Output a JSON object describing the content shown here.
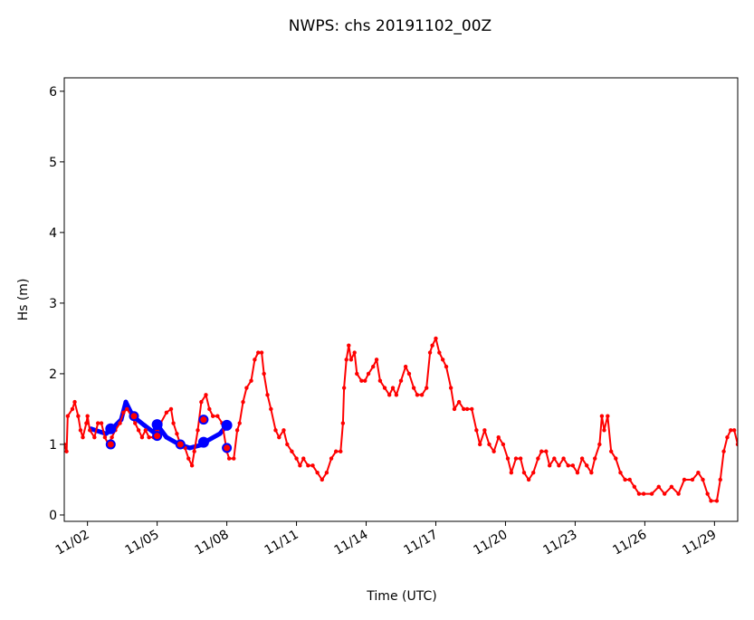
{
  "chart_data": {
    "type": "line",
    "title": "NWPS: chs 20191102_00Z",
    "xlabel": "Time (UTC)",
    "ylabel": "Hs (m)",
    "x_units": "days since 11/01 00Z",
    "xlim": [
      0,
      29
    ],
    "ylim": [
      -0.09,
      6.19
    ],
    "yticks": [
      0,
      1,
      2,
      3,
      4,
      5,
      6
    ],
    "xticks": [
      {
        "day": 1,
        "label": "11/02"
      },
      {
        "day": 4,
        "label": "11/05"
      },
      {
        "day": 7,
        "label": "11/08"
      },
      {
        "day": 10,
        "label": "11/11"
      },
      {
        "day": 13,
        "label": "11/14"
      },
      {
        "day": 16,
        "label": "11/17"
      },
      {
        "day": 19,
        "label": "11/20"
      },
      {
        "day": 22,
        "label": "11/23"
      },
      {
        "day": 25,
        "label": "11/26"
      },
      {
        "day": 28,
        "label": "11/29"
      }
    ],
    "grid": false,
    "series": [
      {
        "name": "blue-line",
        "color": "#0000ff",
        "x": [
          1.15,
          1.8,
          2.0,
          2.45,
          2.65,
          2.95,
          3.45,
          3.85,
          4.0,
          4.4,
          4.95,
          5.4,
          6.0,
          6.15,
          6.7,
          7.0
        ],
        "y": [
          1.22,
          1.15,
          1.2,
          1.35,
          1.6,
          1.4,
          1.27,
          1.17,
          1.28,
          1.1,
          1.0,
          0.95,
          1.0,
          1.05,
          1.15,
          1.27
        ]
      },
      {
        "name": "red-line",
        "color": "#ff0000",
        "x": [
          0,
          0.1,
          0.15,
          0.35,
          0.45,
          0.6,
          0.7,
          0.8,
          0.95,
          1.0,
          1.1,
          1.3,
          1.45,
          1.6,
          1.75,
          1.9,
          2.05,
          2.2,
          2.4,
          2.55,
          2.7,
          2.9,
          3.05,
          3.2,
          3.35,
          3.5,
          3.65,
          3.85,
          4.0,
          4.15,
          4.4,
          4.6,
          4.7,
          4.85,
          5.0,
          5.2,
          5.35,
          5.5,
          5.6,
          5.75,
          5.9,
          6.1,
          6.25,
          6.4,
          6.6,
          6.8,
          7.0,
          7.1,
          7.3,
          7.45,
          7.55,
          7.7,
          7.85,
          8.05,
          8.2,
          8.35,
          8.5,
          8.6,
          8.75,
          8.9,
          9.1,
          9.25,
          9.45,
          9.6,
          9.8,
          10.0,
          10.15,
          10.3,
          10.5,
          10.7,
          10.9,
          11.1,
          11.3,
          11.5,
          11.7,
          11.9,
          12.0,
          12.05,
          12.15,
          12.25,
          12.35,
          12.5,
          12.6,
          12.8,
          12.95,
          13.1,
          13.3,
          13.45,
          13.6,
          13.8,
          14.0,
          14.15,
          14.3,
          14.5,
          14.7,
          14.85,
          15.05,
          15.2,
          15.4,
          15.6,
          15.75,
          15.85,
          16.0,
          16.15,
          16.3,
          16.45,
          16.65,
          16.8,
          17.0,
          17.2,
          17.35,
          17.55,
          17.75,
          17.9,
          18.1,
          18.3,
          18.5,
          18.7,
          18.9,
          19.1,
          19.25,
          19.45,
          19.65,
          19.8,
          20.0,
          20.2,
          20.4,
          20.55,
          20.75,
          20.9,
          21.1,
          21.3,
          21.5,
          21.7,
          21.9,
          22.1,
          22.3,
          22.5,
          22.7,
          22.85,
          23.05,
          23.15,
          23.25,
          23.4,
          23.55,
          23.75,
          23.95,
          24.15,
          24.35,
          24.55,
          24.75,
          24.95,
          25.3,
          25.6,
          25.85,
          26.15,
          26.45,
          26.7,
          27.05,
          27.3,
          27.5,
          27.7,
          27.85,
          28.1,
          28.25,
          28.4,
          28.55,
          28.7,
          28.85,
          29.0
        ],
        "y": [
          1.0,
          0.9,
          1.4,
          1.5,
          1.6,
          1.4,
          1.2,
          1.1,
          1.3,
          1.4,
          1.2,
          1.1,
          1.3,
          1.3,
          1.1,
          1.0,
          1.1,
          1.2,
          1.3,
          1.45,
          1.5,
          1.4,
          1.3,
          1.2,
          1.1,
          1.2,
          1.1,
          1.1,
          1.2,
          1.3,
          1.45,
          1.5,
          1.3,
          1.15,
          1.0,
          0.95,
          0.8,
          0.7,
          0.9,
          1.2,
          1.6,
          1.7,
          1.5,
          1.4,
          1.4,
          1.3,
          0.9,
          0.8,
          0.8,
          1.2,
          1.3,
          1.6,
          1.8,
          1.9,
          2.2,
          2.3,
          2.3,
          2.0,
          1.7,
          1.5,
          1.2,
          1.1,
          1.2,
          1.0,
          0.9,
          0.8,
          0.7,
          0.8,
          0.7,
          0.7,
          0.6,
          0.5,
          0.6,
          0.8,
          0.9,
          0.9,
          1.3,
          1.8,
          2.2,
          2.4,
          2.2,
          2.3,
          2.0,
          1.9,
          1.9,
          2.0,
          2.1,
          2.2,
          1.9,
          1.8,
          1.7,
          1.8,
          1.7,
          1.9,
          2.1,
          2.0,
          1.8,
          1.7,
          1.7,
          1.8,
          2.3,
          2.4,
          2.5,
          2.3,
          2.2,
          2.1,
          1.8,
          1.5,
          1.6,
          1.5,
          1.5,
          1.5,
          1.2,
          1.0,
          1.2,
          1.0,
          0.9,
          1.1,
          1.0,
          0.8,
          0.6,
          0.8,
          0.8,
          0.6,
          0.5,
          0.6,
          0.8,
          0.9,
          0.9,
          0.7,
          0.8,
          0.7,
          0.8,
          0.7,
          0.7,
          0.6,
          0.8,
          0.7,
          0.6,
          0.8,
          1.0,
          1.4,
          1.2,
          1.4,
          0.9,
          0.8,
          0.6,
          0.5,
          0.5,
          0.4,
          0.3,
          0.3,
          0.3,
          0.4,
          0.3,
          0.4,
          0.3,
          0.5,
          0.5,
          0.6,
          0.5,
          0.3,
          0.2,
          0.2,
          0.5,
          0.9,
          1.1,
          1.2,
          1.2,
          1.0
        ]
      },
      {
        "name": "blue-markers",
        "color": "#0000ff",
        "x": [
          2.0,
          4.0,
          6.0,
          7.0
        ],
        "y": [
          1.22,
          1.28,
          1.03,
          1.27
        ]
      },
      {
        "name": "observations",
        "edge_color": "#0000ff",
        "face_color": "#ff0000",
        "x": [
          2.0,
          3.0,
          4.0,
          5.0,
          6.0,
          7.0
        ],
        "y": [
          1.0,
          1.4,
          1.12,
          1.0,
          1.35,
          0.95
        ]
      }
    ]
  }
}
